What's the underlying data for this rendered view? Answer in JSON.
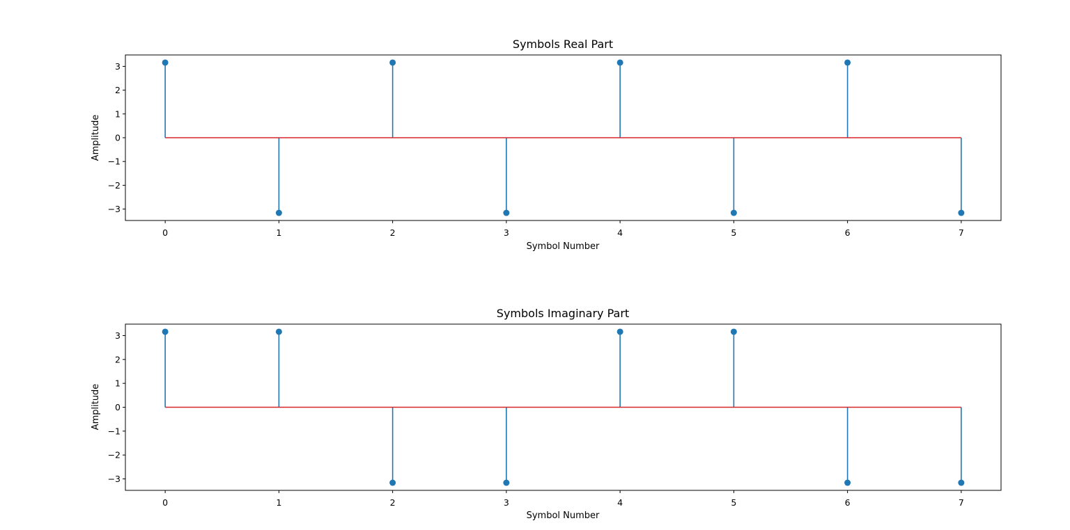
{
  "colors": {
    "stem": "#1f77b4",
    "baseline": "#d62728",
    "axes": "#000000"
  },
  "chart_data": [
    {
      "type": "stem",
      "title": "Symbols Real Part",
      "xlabel": "Symbol Number",
      "ylabel": "Amplitude",
      "x": [
        0,
        1,
        2,
        3,
        4,
        5,
        6,
        7
      ],
      "y": [
        3.16,
        -3.16,
        3.16,
        -3.16,
        3.16,
        -3.16,
        3.16,
        -3.16
      ],
      "baseline": 0,
      "xlim": [
        -0.35,
        7.35
      ],
      "ylim": [
        -3.48,
        3.48
      ],
      "xticks": [
        0,
        1,
        2,
        3,
        4,
        5,
        6,
        7
      ],
      "yticks": [
        3,
        2,
        1,
        0,
        -1,
        -2,
        -3
      ],
      "ytick_labels": [
        "3",
        "2",
        "1",
        "0",
        "−1",
        "−2",
        "−3"
      ],
      "grid": false
    },
    {
      "type": "stem",
      "title": "Symbols Imaginary Part",
      "xlabel": "Symbol Number",
      "ylabel": "Amplitude",
      "x": [
        0,
        1,
        2,
        3,
        4,
        5,
        6,
        7
      ],
      "y": [
        3.16,
        3.16,
        -3.16,
        -3.16,
        3.16,
        3.16,
        -3.16,
        -3.16
      ],
      "baseline": 0,
      "xlim": [
        -0.35,
        7.35
      ],
      "ylim": [
        -3.48,
        3.48
      ],
      "xticks": [
        0,
        1,
        2,
        3,
        4,
        5,
        6,
        7
      ],
      "yticks": [
        3,
        2,
        1,
        0,
        -1,
        -2,
        -3
      ],
      "ytick_labels": [
        "3",
        "2",
        "1",
        "0",
        "−1",
        "−2",
        "−3"
      ],
      "grid": false
    }
  ]
}
